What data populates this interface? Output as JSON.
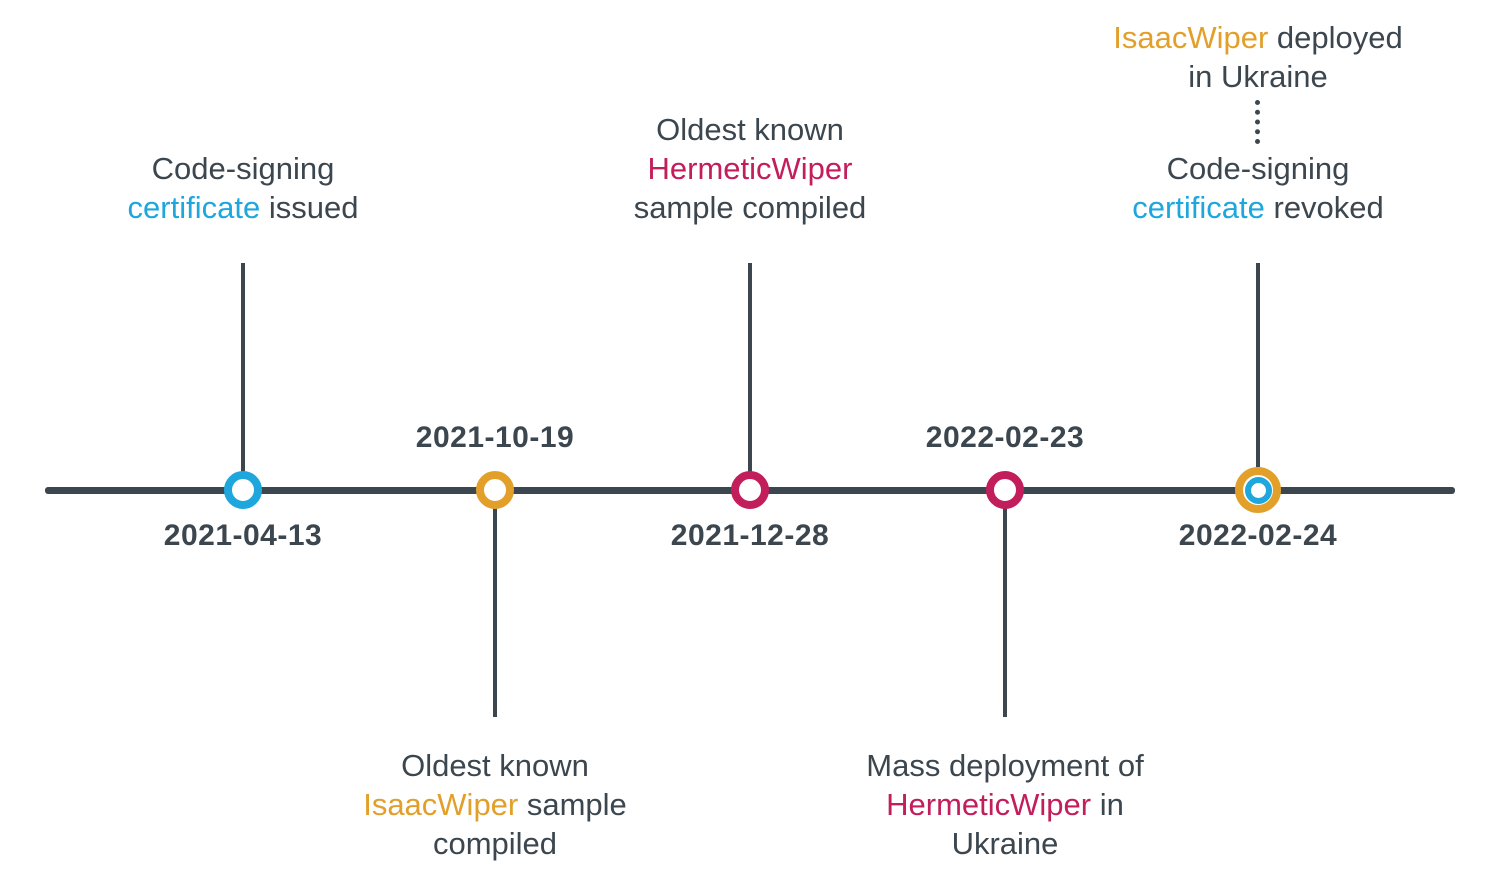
{
  "diagram_type": "timeline",
  "colors": {
    "blue": "#1ea7dd",
    "orange": "#e2a02a",
    "magenta": "#c31e5c",
    "dark": "#3c464e"
  },
  "events": [
    {
      "date": "2021-04-13",
      "marker": "blue",
      "label_position": "above",
      "date_position": "below",
      "label": [
        [
          {
            "t": "Code-signing",
            "c": "dark"
          }
        ],
        [
          {
            "t": "certificate",
            "c": "blue"
          },
          {
            "t": " issued",
            "c": "dark"
          }
        ]
      ]
    },
    {
      "date": "2021-10-19",
      "marker": "orange",
      "label_position": "below",
      "date_position": "above",
      "label": [
        [
          {
            "t": "Oldest known",
            "c": "dark"
          }
        ],
        [
          {
            "t": "IsaacWiper",
            "c": "orange"
          },
          {
            "t": " sample",
            "c": "dark"
          }
        ],
        [
          {
            "t": "compiled",
            "c": "dark"
          }
        ]
      ]
    },
    {
      "date": "2021-12-28",
      "marker": "magenta",
      "label_position": "above",
      "date_position": "below",
      "label": [
        [
          {
            "t": "Oldest known",
            "c": "dark"
          }
        ],
        [
          {
            "t": "HermeticWiper",
            "c": "magenta"
          }
        ],
        [
          {
            "t": "sample compiled",
            "c": "dark"
          }
        ]
      ]
    },
    {
      "date": "2022-02-23",
      "marker": "magenta",
      "label_position": "below",
      "date_position": "above",
      "label": [
        [
          {
            "t": "Mass deployment of",
            "c": "dark"
          }
        ],
        [
          {
            "t": "HermeticWiper",
            "c": "magenta"
          },
          {
            "t": " in",
            "c": "dark"
          }
        ],
        [
          {
            "t": "Ukraine",
            "c": "dark"
          }
        ]
      ]
    },
    {
      "date": "2022-02-24",
      "marker": "orange-blue-double",
      "label_position": "above",
      "date_position": "below",
      "label_top": [
        [
          {
            "t": "IsaacWiper",
            "c": "orange"
          },
          {
            "t": " deployed",
            "c": "dark"
          }
        ],
        [
          {
            "t": "in Ukraine",
            "c": "dark"
          }
        ]
      ],
      "label_bottom": [
        [
          {
            "t": "Code-signing",
            "c": "dark"
          }
        ],
        [
          {
            "t": "certificate",
            "c": "blue"
          },
          {
            "t": " revoked",
            "c": "dark"
          }
        ]
      ]
    }
  ]
}
